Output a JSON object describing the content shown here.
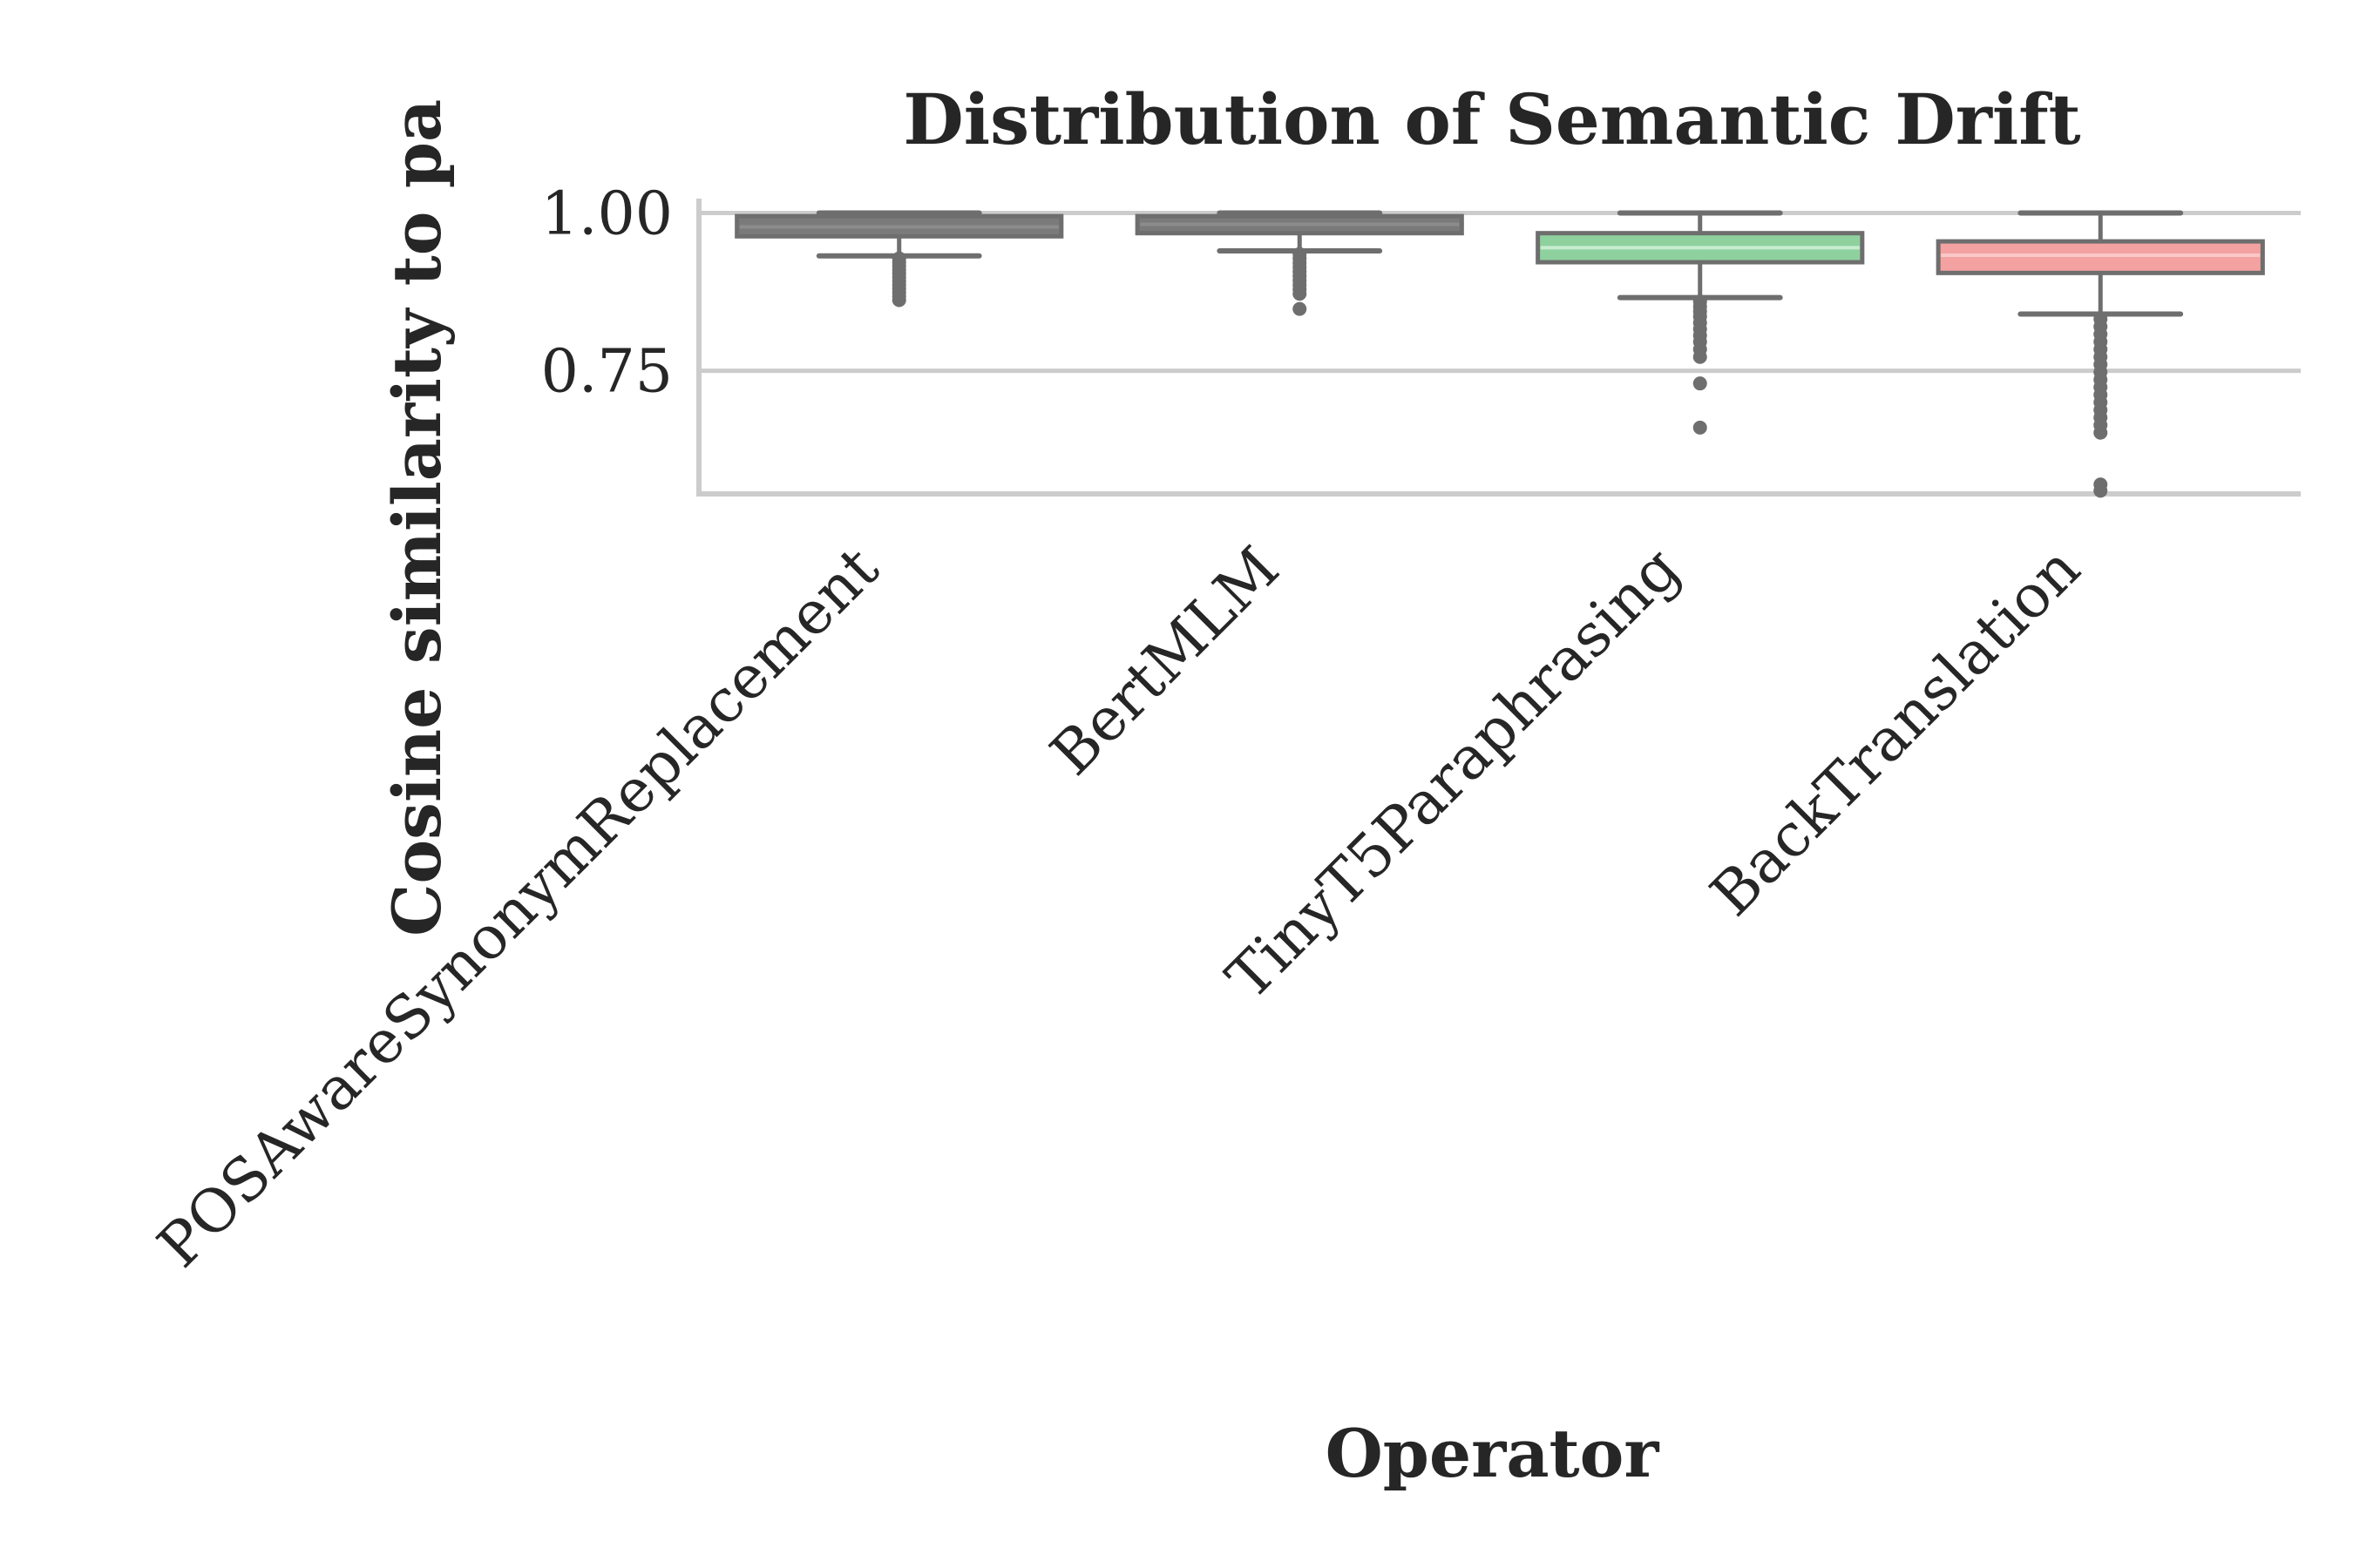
{
  "chart_data": {
    "type": "box",
    "title": "Distribution of Semantic Drift",
    "xlabel": "Operator",
    "ylabel": "Cosine similarity to pa",
    "ylim": [
      0.555,
      1.02
    ],
    "yticks": [
      {
        "value": 1.0,
        "label": "1.00"
      },
      {
        "value": 0.75,
        "label": "0.75"
      }
    ],
    "grid": true,
    "categories": [
      "POSAwareSynonymReplacement",
      "BertMLM",
      "TinyT5Paraphrasing",
      "BackTranslation"
    ],
    "boxes": [
      {
        "name": "POSAwareSynonymReplacement",
        "color": "#7a7a7a",
        "median_color": "#8c8c8c",
        "whisker_low": 0.932,
        "q1": 0.963,
        "median": 0.978,
        "q3": 0.995,
        "whisker_high": 1.0,
        "fliers": [
          0.928,
          0.922,
          0.916,
          0.91,
          0.904,
          0.898,
          0.892,
          0.886,
          0.88,
          0.874,
          0.868,
          0.862
        ]
      },
      {
        "name": "BertMLM",
        "color": "#7a7a7a",
        "median_color": "#8c8c8c",
        "whisker_low": 0.94,
        "q1": 0.968,
        "median": 0.982,
        "q3": 0.995,
        "whisker_high": 1.0,
        "fliers": [
          0.935,
          0.928,
          0.921,
          0.914,
          0.907,
          0.9,
          0.893,
          0.886,
          0.879,
          0.872,
          0.848
        ]
      },
      {
        "name": "TinyT5Paraphrasing",
        "color": "#8fd19e",
        "median_color": "#c8ecd0",
        "whisker_low": 0.866,
        "q1": 0.922,
        "median": 0.945,
        "q3": 0.968,
        "whisker_high": 1.0,
        "fliers": [
          0.86,
          0.852,
          0.844,
          0.836,
          0.826,
          0.816,
          0.806,
          0.796,
          0.784,
          0.772,
          0.73,
          0.66
        ]
      },
      {
        "name": "BackTranslation",
        "color": "#f4a1a1",
        "median_color": "#fac8c8",
        "whisker_low": 0.84,
        "q1": 0.905,
        "median": 0.933,
        "q3": 0.955,
        "whisker_high": 1.0,
        "fliers": [
          0.832,
          0.82,
          0.808,
          0.796,
          0.784,
          0.772,
          0.76,
          0.748,
          0.736,
          0.724,
          0.712,
          0.7,
          0.688,
          0.676,
          0.664,
          0.652,
          0.57,
          0.56
        ]
      }
    ]
  }
}
